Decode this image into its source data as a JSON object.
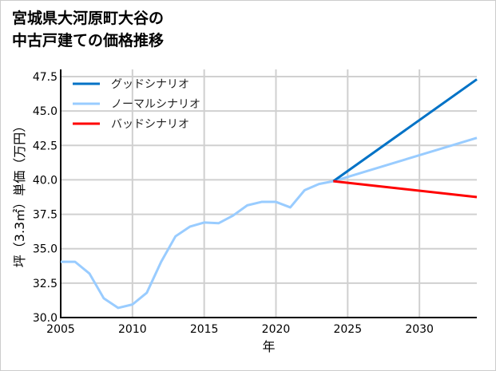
{
  "chart_data": {
    "type": "line",
    "title_lines": [
      "宮城県大河原町大谷の",
      "中古戸建ての価格推移"
    ],
    "xlabel": "年",
    "ylabel": "坪（3.3㎡）単価（万円）",
    "xlim": [
      2005,
      2034
    ],
    "ylim": [
      30,
      47.5
    ],
    "xticks": [
      2005,
      2010,
      2015,
      2020,
      2025,
      2030
    ],
    "yticks": [
      30.0,
      32.5,
      35.0,
      37.5,
      40.0,
      42.5,
      45.0,
      47.5
    ],
    "grid": true,
    "legend_position": "top-left",
    "series": [
      {
        "name": "グッドシナリオ",
        "color": "#0072C6",
        "x": [
          2024,
          2034
        ],
        "y": [
          39.9,
          47.3
        ]
      },
      {
        "name": "ノーマルシナリオ",
        "color": "#99CCFF",
        "x": [
          2005,
          2006,
          2007,
          2008,
          2009,
          2010,
          2011,
          2012,
          2013,
          2014,
          2015,
          2016,
          2017,
          2018,
          2019,
          2020,
          2021,
          2022,
          2023,
          2024,
          2034
        ],
        "y": [
          34.05,
          34.05,
          33.2,
          31.4,
          30.7,
          30.95,
          31.8,
          34.05,
          35.9,
          36.6,
          36.9,
          36.85,
          37.4,
          38.15,
          38.4,
          38.4,
          38.0,
          39.25,
          39.7,
          39.9,
          43.05
        ]
      },
      {
        "name": "バッドシナリオ",
        "color": "#FF0000",
        "x": [
          2024,
          2034
        ],
        "y": [
          39.9,
          38.75
        ]
      }
    ]
  }
}
